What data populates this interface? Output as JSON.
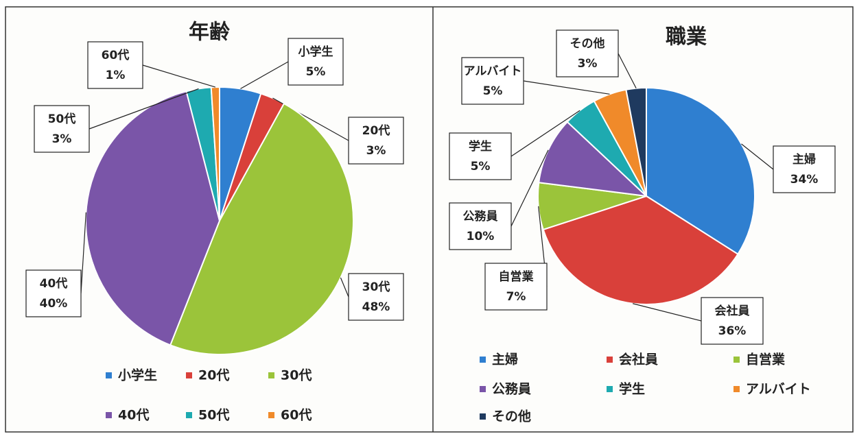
{
  "chart_data": [
    {
      "type": "pie",
      "title": "年齢",
      "categories": [
        "小学生",
        "20代",
        "30代",
        "40代",
        "50代",
        "60代"
      ],
      "values": [
        5,
        3,
        48,
        40,
        3,
        1
      ],
      "value_labels": [
        "5%",
        "3%",
        "48%",
        "40%",
        "3%",
        "1%"
      ],
      "colors": [
        "#2f7fd0",
        "#d9403a",
        "#9bc43a",
        "#7a55a8",
        "#1eaab0",
        "#f08a2a"
      ],
      "legend": "bottom"
    },
    {
      "type": "pie",
      "title": "職業",
      "categories": [
        "主婦",
        "会社員",
        "自営業",
        "公務員",
        "学生",
        "アルバイト",
        "その他"
      ],
      "values": [
        34,
        36,
        7,
        10,
        5,
        5,
        3
      ],
      "value_labels": [
        "34%",
        "36%",
        "7%",
        "10%",
        "5%",
        "5%",
        "3%"
      ],
      "colors": [
        "#2f7fd0",
        "#d9403a",
        "#9bc43a",
        "#7a55a8",
        "#1eaab0",
        "#f08a2a",
        "#1f3a5f"
      ],
      "legend": "bottom"
    }
  ]
}
